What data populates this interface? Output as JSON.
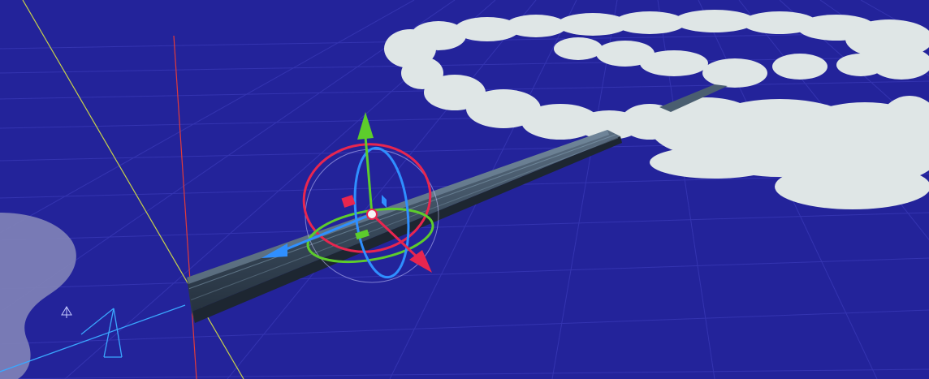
{
  "app": {
    "view": "scene-view",
    "mode": "3d-perspective"
  },
  "scene": {
    "background_color": "#23239a",
    "grid_color": "#3a3ab8",
    "grid_visible": true,
    "cloud_color": "#dfe6e6",
    "track_color": "#3b4a5a",
    "track_highlight_color": "#6e8aa0",
    "world_axes": {
      "x_axis_color": "#e23a3a",
      "z_axis_color": "#c8d24a"
    },
    "objects": [
      {
        "name": "rail-track",
        "kind": "mesh",
        "selected": true
      },
      {
        "name": "cloud-bank",
        "kind": "mesh",
        "selected": false
      },
      {
        "name": "rock-left",
        "kind": "mesh",
        "selected": false
      },
      {
        "name": "camera",
        "kind": "camera-gizmo",
        "selected": false
      }
    ]
  },
  "gizmo": {
    "tool": "universal-transform",
    "axis_colors": {
      "x": "#e8264f",
      "y": "#5dcc2c",
      "z": "#2f8fff"
    },
    "pivot_color": "#f5f5f5"
  }
}
